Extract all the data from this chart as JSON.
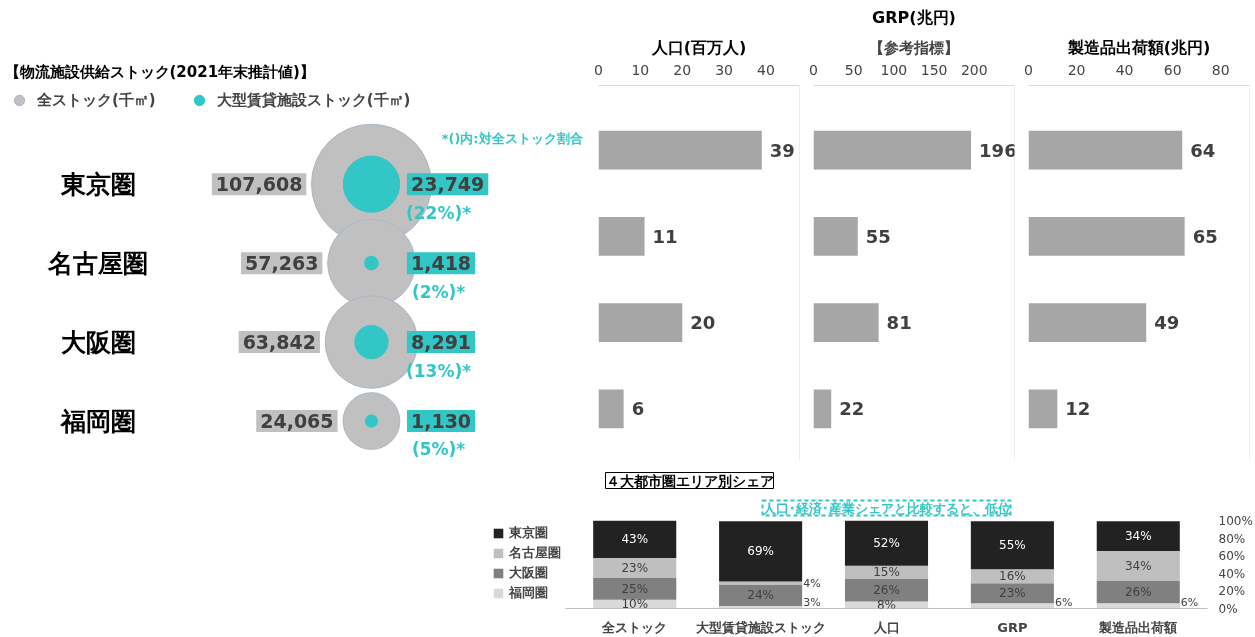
{
  "chart_data": [
    {
      "type": "other",
      "title": "【物流施設供給ストック(2021年末推計値)】",
      "categories": [
        "東京圏",
        "名古屋圏",
        "大阪圏",
        "福岡圏"
      ],
      "legend": "top",
      "data_labels": true,
      "series": [
        {
          "name": "全ストック(千㎡)",
          "color": "#c0c0c0",
          "values": [
            107608,
            57263,
            63842,
            24065
          ],
          "value_labels": [
            "107,608",
            "57,263",
            "63,842",
            "24,065"
          ]
        },
        {
          "name": "大型賃貸施設ストック(千㎡)",
          "color": "#33c6c6",
          "values": [
            23749,
            1418,
            8291,
            1130
          ],
          "value_labels": [
            "23,749",
            "1,418",
            "8,291",
            "1,130"
          ]
        }
      ],
      "annotations": [
        "*()内:対全ストック割合",
        {
          "text": "(22%)*",
          "y": "東京圏"
        },
        {
          "text": "(2%)*",
          "y": "名古屋圏"
        },
        {
          "text": "(13%)*",
          "y": "大阪圏"
        },
        {
          "text": "(5%)*",
          "y": "福岡圏"
        }
      ]
    },
    {
      "type": "bar",
      "orientation": "horizontal",
      "title": "人口(百万人)",
      "categories": [
        null,
        null,
        null,
        null
      ],
      "values": [
        39,
        11,
        20,
        6
      ],
      "color": "#a6a6a6",
      "xlim": [
        0,
        48
      ],
      "xticks": [
        0,
        10,
        20,
        30,
        40
      ],
      "tick_labels": "x",
      "data_labels": true
    },
    {
      "type": "bar",
      "orientation": "horizontal",
      "title": "GRP(兆円)",
      "categories": [
        null,
        null,
        null,
        null
      ],
      "values": [
        196,
        55,
        81,
        22
      ],
      "color": "#a6a6a6",
      "xlim": [
        0,
        250
      ],
      "xticks": [
        0,
        50,
        100,
        150,
        200
      ],
      "tick_labels": "x",
      "data_labels": true,
      "annotations": [
        "【参考指標】"
      ]
    },
    {
      "type": "bar",
      "orientation": "horizontal",
      "title": "製造品出荷額(兆円)",
      "categories": [
        null,
        null,
        null,
        null
      ],
      "values": [
        64,
        65,
        49,
        12
      ],
      "color": "#a6a6a6",
      "xlim": [
        0,
        92
      ],
      "xticks": [
        0,
        20,
        40,
        60,
        80
      ],
      "tick_labels": "x",
      "data_labels": true
    },
    {
      "type": "bar",
      "stacked": true,
      "title": "４大都市圏エリア別シェア",
      "categories": [
        "全ストック",
        "大型賃貸施設ストック",
        "人口",
        "GRP",
        "製造品出荷額"
      ],
      "legend": "left",
      "ylim": [
        0,
        101
      ],
      "yticks": [
        {
          "value": 0,
          "label": "0%"
        },
        {
          "value": 20,
          "label": "20%"
        },
        {
          "value": 40,
          "label": "40%"
        },
        {
          "value": 60,
          "label": "60%"
        },
        {
          "value": 80,
          "label": "80%"
        },
        {
          "value": 100,
          "label": "100%"
        }
      ],
      "series": [
        {
          "name": "福岡圏",
          "color": "#d9d9d9",
          "values": [
            10,
            3,
            8,
            6,
            6
          ],
          "value_labels": [
            "10%",
            "3%",
            "8%",
            "6%",
            "6%"
          ]
        },
        {
          "name": "大阪圏",
          "color": "#808080",
          "values": [
            25,
            24,
            26,
            23,
            26
          ],
          "value_labels": [
            "25%",
            "24%",
            "26%",
            "23%",
            "26%"
          ]
        },
        {
          "name": "名古屋圏",
          "color": "#bfbfbf",
          "values": [
            23,
            4,
            15,
            16,
            34
          ],
          "value_labels": [
            "23%",
            "4%",
            "15%",
            "16%",
            "34%"
          ]
        },
        {
          "name": "東京圏",
          "color": "#222222",
          "values": [
            43,
            69,
            52,
            55,
            34
          ],
          "value_labels": [
            "43%",
            "69%",
            "52%",
            "55%",
            "34%"
          ]
        }
      ],
      "annotations": [
        "人口･経済･産業シェアと比較すると、低位"
      ]
    }
  ]
}
